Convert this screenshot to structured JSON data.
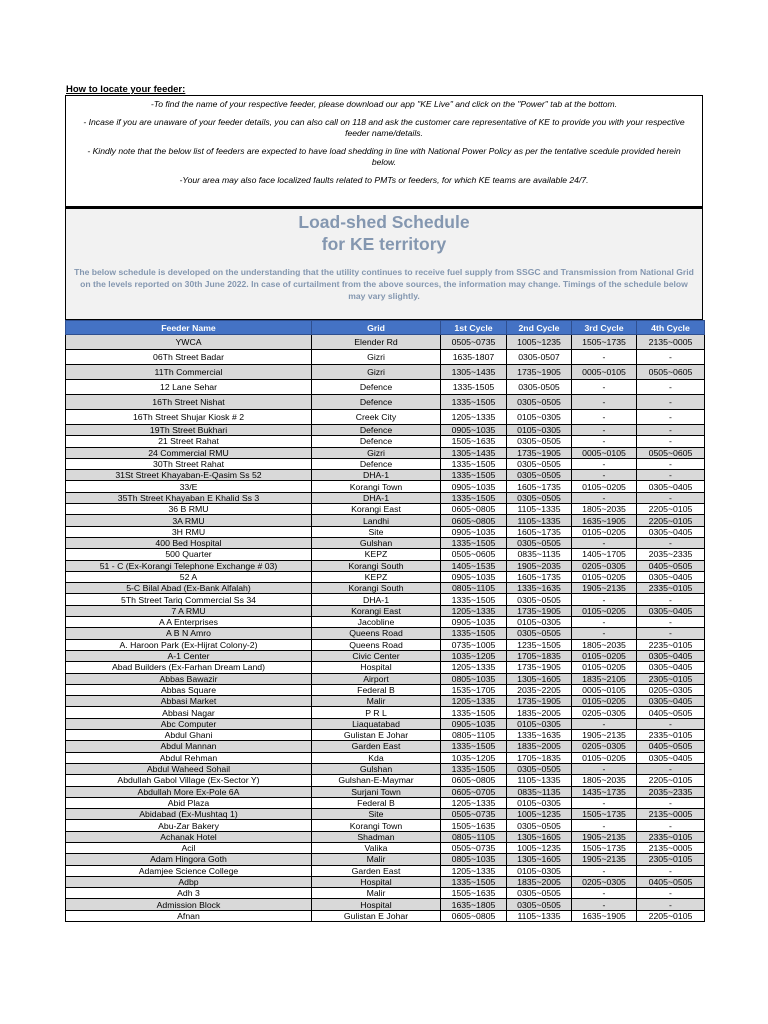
{
  "heading": "How to locate your feeder:",
  "info": [
    "-To find the name of your respective feeder, please download our app \"KE Live\" and click on the \"Power\" tab at the bottom.",
    "- Incase if you are unaware of your feeder details, you can also call on 118 and ask the customer care representative of KE to provide you with your respective feeder name/details.",
    "- Kindly note that the below list of feeders are expected to have load shedding in line with National Power Policy as per the tentative scedule provided herein below.",
    "-Your area may also face localized faults related to PMTs or feeders, for which KE teams are available 24/7."
  ],
  "banner": {
    "title_line1": "Load-shed Schedule",
    "title_line2": "for KE territory",
    "subtitle": "The below schedule is developed on the understanding that the utility continues to receive fuel supply from SSGC and Transmission from National Grid on the levels reported on 30th June 2022. In case of curtailment from the above sources, the information may change. Timings of the schedule below may vary slightly.",
    "color": "#8497b0"
  },
  "colors": {
    "header_bg": "#4472c4",
    "alt_row": "#d9d9d9"
  },
  "table": {
    "columns": [
      "Feeder Name",
      "Grid",
      "1st Cycle",
      "2nd Cycle",
      "3rd Cycle",
      "4th Cycle"
    ],
    "rows": [
      [
        "YWCA",
        "Elender Rd",
        "0505~0735",
        "1005~1235",
        "1505~1735",
        "2135~0005"
      ],
      [
        "06Th Street Badar",
        "Gizri",
        "1635-1807",
        "0305-0507",
        "-",
        "-"
      ],
      [
        "11Th Commercial",
        "Gizri",
        "1305~1435",
        "1735~1905",
        "0005~0105",
        "0505~0605"
      ],
      [
        "12 Lane Sehar",
        "Defence",
        "1335-1505",
        "0305-0505",
        "-",
        "-"
      ],
      [
        "16Th Street Nishat",
        "Defence",
        "1335~1505",
        "0305~0505",
        "-",
        "-"
      ],
      [
        "16Th Street Shujar Kiosk # 2",
        "Creek City",
        "1205~1335",
        "0105~0305",
        "-",
        "-"
      ],
      [
        "19Th Street Bukhari",
        "Defence",
        "0905~1035",
        "0105~0305",
        "-",
        "-"
      ],
      [
        "21 Street Rahat",
        "Defence",
        "1505~1635",
        "0305~0505",
        "-",
        "-"
      ],
      [
        "24 Commercial RMU",
        "Gizri",
        "1305~1435",
        "1735~1905",
        "0005~0105",
        "0505~0605"
      ],
      [
        "30Th Street Rahat",
        "Defence",
        "1335~1505",
        "0305~0505",
        "-",
        "-"
      ],
      [
        "31St Street Khayaban-E-Qasim Ss 52",
        "DHA-1",
        "1335~1505",
        "0305~0505",
        "-",
        "-"
      ],
      [
        "33/E",
        "Korangi Town",
        "0905~1035",
        "1605~1735",
        "0105~0205",
        "0305~0405"
      ],
      [
        "35Th Street Khayaban E Khalid Ss 3",
        "DHA-1",
        "1335~1505",
        "0305~0505",
        "-",
        "-"
      ],
      [
        "36 B RMU",
        "Korangi East",
        "0605~0805",
        "1105~1335",
        "1805~2035",
        "2205~0105"
      ],
      [
        "3A RMU",
        "Landhi",
        "0605~0805",
        "1105~1335",
        "1635~1905",
        "2205~0105"
      ],
      [
        "3H RMU",
        "Site",
        "0905~1035",
        "1605~1735",
        "0105~0205",
        "0305~0405"
      ],
      [
        "400 Bed Hospital",
        "Gulshan",
        "1335~1505",
        "0305~0505",
        "-",
        "-"
      ],
      [
        "500 Quarter",
        "KEPZ",
        "0505~0605",
        "0835~1135",
        "1405~1705",
        "2035~2335"
      ],
      [
        "51 - C (Ex-Korangi Telephone Exchange # 03)",
        "Korangi South",
        "1405~1535",
        "1905~2035",
        "0205~0305",
        "0405~0505"
      ],
      [
        "52 A",
        "KEPZ",
        "0905~1035",
        "1605~1735",
        "0105~0205",
        "0305~0405"
      ],
      [
        "5-C Bilal Abad (Ex-Bank Alfalah)",
        "Korangi South",
        "0805~1105",
        "1335~1635",
        "1905~2135",
        "2335~0105"
      ],
      [
        "5Th Street Tariq Commercial Ss 34",
        "DHA-1",
        "1335~1505",
        "0305~0505",
        "-",
        "-"
      ],
      [
        "7 A RMU",
        "Korangi East",
        "1205~1335",
        "1735~1905",
        "0105~0205",
        "0305~0405"
      ],
      [
        "A A Enterprises",
        "Jacobline",
        "0905~1035",
        "0105~0305",
        "-",
        "-"
      ],
      [
        "A B N Amro",
        "Queens Road",
        "1335~1505",
        "0305~0505",
        "-",
        "-"
      ],
      [
        "A. Haroon Park (Ex-Hijrat Colony-2)",
        "Queens Road",
        "0735~1005",
        "1235~1505",
        "1805~2035",
        "2235~0105"
      ],
      [
        "A-1 Center",
        "Civic Center",
        "1035~1205",
        "1705~1835",
        "0105~0205",
        "0305~0405"
      ],
      [
        "Abad Builders (Ex-Farhan Dream Land)",
        "Hospital",
        "1205~1335",
        "1735~1905",
        "0105~0205",
        "0305~0405"
      ],
      [
        "Abbas Bawazir",
        "Airport",
        "0805~1035",
        "1305~1605",
        "1835~2105",
        "2305~0105"
      ],
      [
        "Abbas Square",
        "Federal B",
        "1535~1705",
        "2035~2205",
        "0005~0105",
        "0205~0305"
      ],
      [
        "Abbasi Market",
        "Malir",
        "1205~1335",
        "1735~1905",
        "0105~0205",
        "0305~0405"
      ],
      [
        "Abbasi Nagar",
        "P R L",
        "1335~1505",
        "1835~2005",
        "0205~0305",
        "0405~0505"
      ],
      [
        "Abc Computer",
        "Liaquatabad",
        "0905~1035",
        "0105~0305",
        "-",
        "-"
      ],
      [
        "Abdul Ghani",
        "Gulistan E Johar",
        "0805~1105",
        "1335~1635",
        "1905~2135",
        "2335~0105"
      ],
      [
        "Abdul Mannan",
        "Garden East",
        "1335~1505",
        "1835~2005",
        "0205~0305",
        "0405~0505"
      ],
      [
        "Abdul Rehman",
        "Kda",
        "1035~1205",
        "1705~1835",
        "0105~0205",
        "0305~0405"
      ],
      [
        "Abdul Waheed Sohail",
        "Gulshan",
        "1335~1505",
        "0305~0505",
        "-",
        "-"
      ],
      [
        "Abdullah Gabol Village (Ex-Sector Y)",
        "Gulshan-E-Maymar",
        "0605~0805",
        "1105~1335",
        "1805~2035",
        "2205~0105"
      ],
      [
        "Abdullah More Ex-Pole 6A",
        "Surjani Town",
        "0605~0705",
        "0835~1135",
        "1435~1735",
        "2035~2335"
      ],
      [
        "Abid Plaza",
        "Federal B",
        "1205~1335",
        "0105~0305",
        "-",
        "-"
      ],
      [
        "Abidabad (Ex-Mushtaq 1)",
        "Site",
        "0505~0735",
        "1005~1235",
        "1505~1735",
        "2135~0005"
      ],
      [
        "Abu-Zar Bakery",
        "Korangi Town",
        "1505~1635",
        "0305~0505",
        "-",
        "-"
      ],
      [
        "Achanak Hotel",
        "Shadman",
        "0805~1105",
        "1305~1605",
        "1905~2135",
        "2335~0105"
      ],
      [
        "Acil",
        "Valika",
        "0505~0735",
        "1005~1235",
        "1505~1735",
        "2135~0005"
      ],
      [
        "Adam Hingora Goth",
        "Malir",
        "0805~1035",
        "1305~1605",
        "1905~2135",
        "2305~0105"
      ],
      [
        "Adamjee Science College",
        "Garden East",
        "1205~1335",
        "0105~0305",
        "-",
        "-"
      ],
      [
        "Adbp",
        "Hospital",
        "1335~1505",
        "1835~2005",
        "0205~0305",
        "0405~0505"
      ],
      [
        "Adh 3",
        "Malir",
        "1505~1635",
        "0305~0505",
        "-",
        "-"
      ],
      [
        "Admission Block",
        "Hospital",
        "1635~1805",
        "0305~0505",
        "-",
        "-"
      ],
      [
        "Afnan",
        "Gulistan E Johar",
        "0605~0805",
        "1105~1335",
        "1635~1905",
        "2205~0105"
      ]
    ]
  }
}
